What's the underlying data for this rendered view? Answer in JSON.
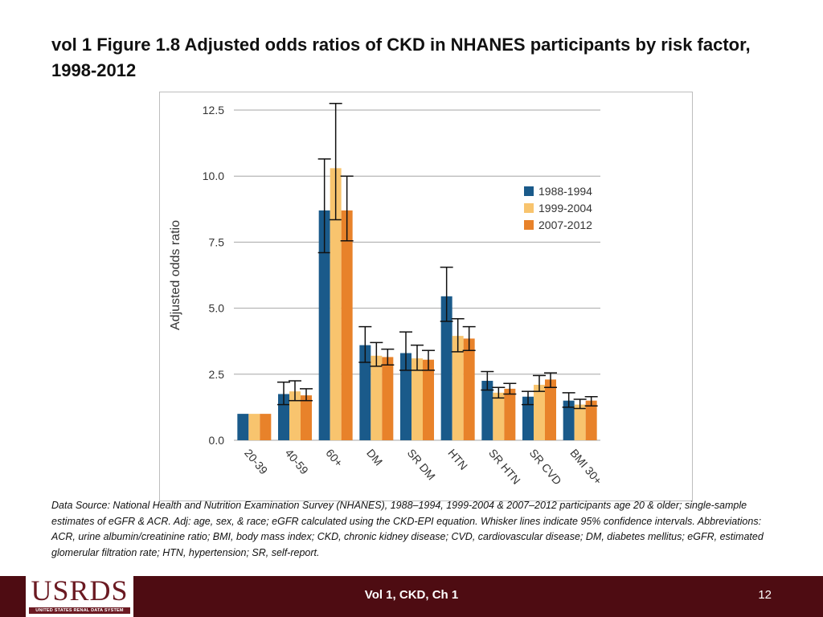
{
  "slide": {
    "title": "vol 1 Figure 1.8  Adjusted odds ratios of CKD in NHANES participants by risk factor, 1998-2012",
    "note": "Data Source: National Health and Nutrition Examination Survey (NHANES), 1988–1994, 1999-2004 & 2007–2012 participants age 20 & older; single-sample estimates of eGFR & ACR. Adj: age, sex, & race; eGFR calculated using the CKD-EPI equation. Whisker lines indicate 95% confidence intervals. Abbreviations: ACR, urine albumin/creatinine ratio; BMI, body mass index; CKD, chronic kidney disease; CVD, cardiovascular disease; DM, diabetes mellitus; eGFR, estimated glomerular filtration rate; HTN, hypertension; SR, self-report."
  },
  "footer": {
    "logo_text": "USRDS",
    "logo_subtext": "UNITED STATES RENAL DATA SYSTEM",
    "center": "Vol 1, CKD, Ch 1",
    "page": "12",
    "bar_color": "#4e0c12"
  },
  "chart_data": {
    "type": "bar",
    "title": "",
    "xlabel": "",
    "ylabel": "Adjusted odds ratio",
    "ylim": [
      0,
      12.5
    ],
    "yticks": [
      0,
      2.5,
      5,
      7.5,
      10,
      12.5
    ],
    "ytick_labels": [
      "0.0",
      "2.5",
      "5.0",
      "7.5",
      "10.0",
      "12.5"
    ],
    "grid": true,
    "legend_position": "right",
    "categories": [
      "20-39",
      "40-59",
      "60+",
      "DM",
      "SR DM",
      "HTN",
      "SR HTN",
      "SR CVD",
      "BMI 30+"
    ],
    "series": [
      {
        "name": "1988-1994",
        "color": "#1a5a8a",
        "values": [
          1.0,
          1.75,
          8.7,
          3.6,
          3.3,
          5.45,
          2.25,
          1.65,
          1.5
        ],
        "ci_low": [
          1.0,
          1.35,
          7.1,
          2.95,
          2.65,
          4.5,
          1.9,
          1.35,
          1.25
        ],
        "ci_high": [
          1.0,
          2.2,
          10.65,
          4.3,
          4.1,
          6.55,
          2.6,
          1.85,
          1.8
        ]
      },
      {
        "name": "1999-2004",
        "color": "#f8c46e",
        "values": [
          1.0,
          1.85,
          10.3,
          3.2,
          3.1,
          3.95,
          1.8,
          2.1,
          1.35
        ],
        "ci_low": [
          1.0,
          1.5,
          8.35,
          2.8,
          2.65,
          3.35,
          1.6,
          1.85,
          1.2
        ],
        "ci_high": [
          1.0,
          2.25,
          12.75,
          3.7,
          3.6,
          4.6,
          2.0,
          2.45,
          1.55
        ]
      },
      {
        "name": "2007-2012",
        "color": "#e8822a",
        "values": [
          1.0,
          1.7,
          8.7,
          3.15,
          3.05,
          3.85,
          1.95,
          2.3,
          1.5
        ],
        "ci_low": [
          1.0,
          1.5,
          7.55,
          2.85,
          2.65,
          3.4,
          1.75,
          2.0,
          1.3
        ],
        "ci_high": [
          1.0,
          1.95,
          10.0,
          3.45,
          3.4,
          4.3,
          2.15,
          2.55,
          1.65
        ]
      }
    ]
  }
}
